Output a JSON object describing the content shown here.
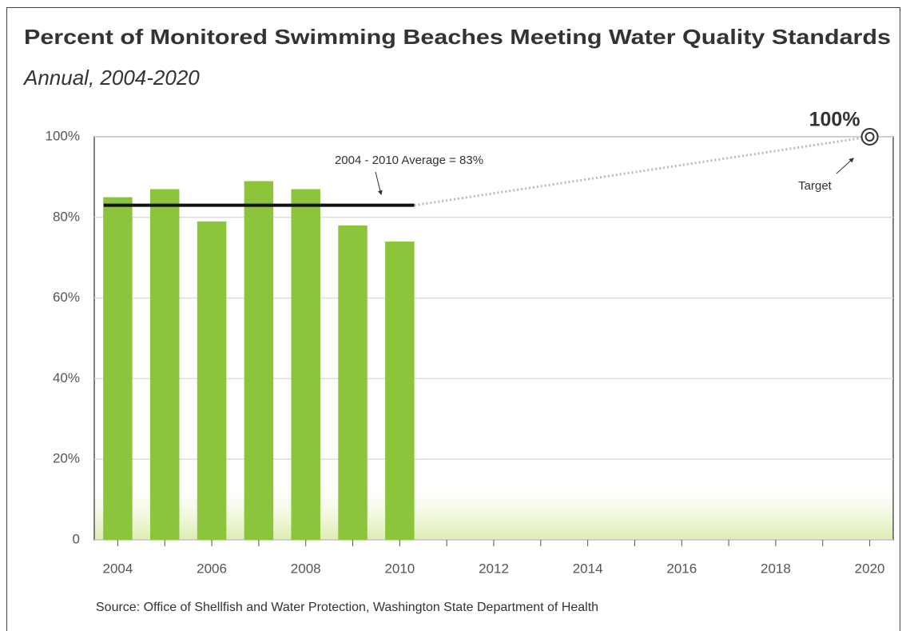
{
  "chart_data": {
    "type": "bar",
    "title": "Percent of Monitored Swimming Beaches Meeting Water Quality Standards",
    "subtitle": "Annual, 2004-2020",
    "categories": [
      "2004",
      null,
      "2006",
      null,
      "2008",
      null,
      "2010",
      null,
      "2012",
      null,
      "2014",
      null,
      "2016",
      null,
      "2018",
      null,
      "2020"
    ],
    "values": [
      85,
      87,
      79,
      89,
      87,
      78,
      74,
      null,
      null,
      null,
      null,
      null,
      null,
      null,
      null,
      null,
      null
    ],
    "color": "#8cc43c",
    "ylim": [
      0,
      100
    ],
    "yticks": [
      0,
      {
        "value": 20,
        "label": "20%"
      },
      {
        "value": 40,
        "label": "40%"
      },
      {
        "value": 60,
        "label": "60%"
      },
      {
        "value": 80,
        "label": "80%"
      },
      {
        "value": 100,
        "label": "100%"
      }
    ],
    "grid": true,
    "average": 83,
    "average_label": "2004 - 2010 Average = 83%",
    "target": 100,
    "target_value_label": "100%",
    "target_label": "Target",
    "source": "Source: Office of Shellfish and Water Protection, Washington State Department of Health"
  }
}
